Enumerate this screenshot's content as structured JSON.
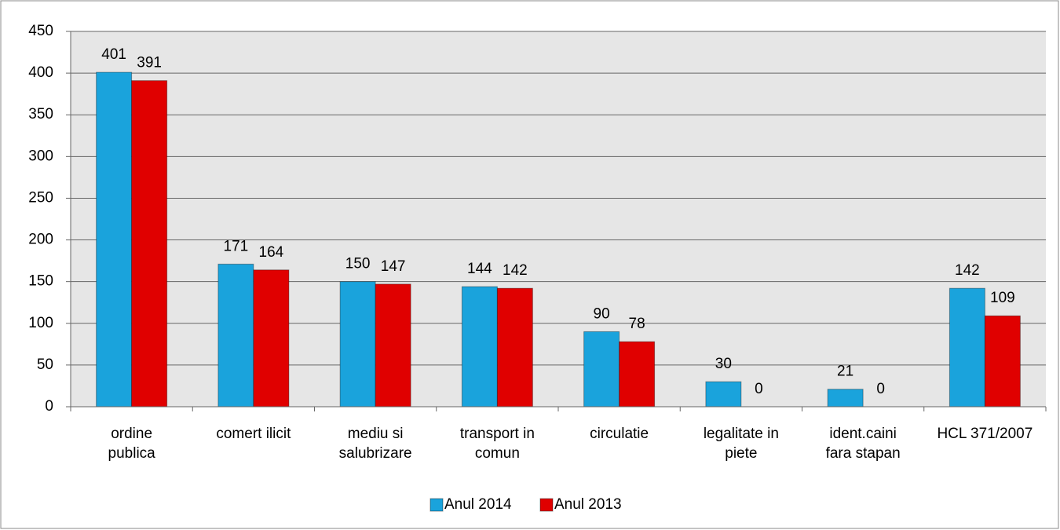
{
  "chart_data": {
    "type": "bar",
    "categories": [
      "ordine\npublica",
      "comert ilicit",
      "mediu si\nsalubrizare",
      "transport in\ncomun",
      "circulatie",
      "legalitate in\npiete",
      "ident.caini\nfara stapan",
      "HCL 371/2007"
    ],
    "series": [
      {
        "name": "Anul 2014",
        "color": "#1aa3dc",
        "values": [
          401,
          171,
          150,
          144,
          90,
          30,
          21,
          142
        ]
      },
      {
        "name": "Anul 2013",
        "color": "#e00000",
        "values": [
          391,
          164,
          147,
          142,
          78,
          0,
          0,
          109
        ]
      }
    ],
    "ylim": [
      0,
      450
    ],
    "yticks": [
      0,
      50,
      100,
      150,
      200,
      250,
      300,
      350,
      400,
      450
    ],
    "grid": true,
    "legend": "bottom"
  }
}
